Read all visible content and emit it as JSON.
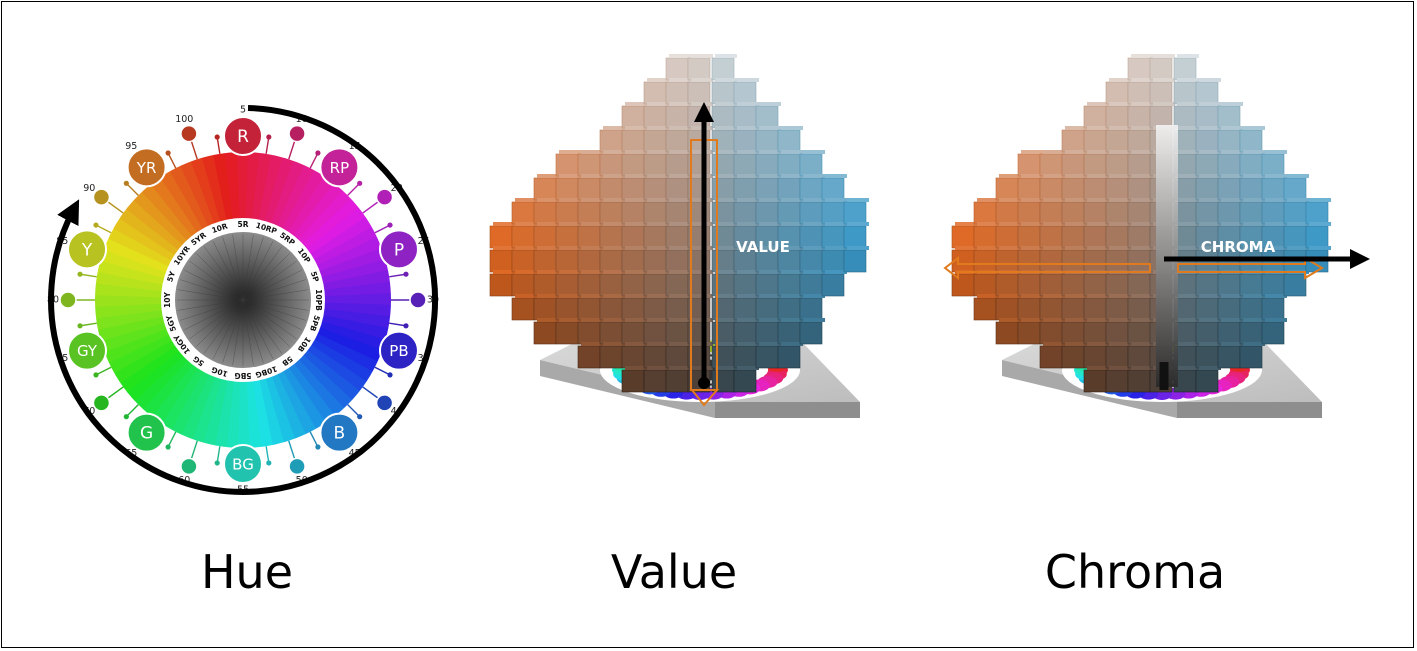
{
  "figure": {
    "captions": {
      "hue": "Hue",
      "value": "Value",
      "chroma": "Chroma"
    },
    "wheel": {
      "principal_hues": [
        "R",
        "RP",
        "P",
        "PB",
        "B",
        "BG",
        "G",
        "GY",
        "Y",
        "YR"
      ],
      "numbers": [
        "5",
        "10",
        "15",
        "20",
        "25",
        "30",
        "35",
        "40",
        "45",
        "50",
        "55",
        "60",
        "65",
        "70",
        "75",
        "80",
        "85",
        "90",
        "95",
        "100"
      ],
      "ring_labels": [
        "5R",
        "10RP",
        "5RP",
        "10P",
        "5P",
        "10PB",
        "5PB",
        "10B",
        "5B",
        "10BG",
        "5BG",
        "10G",
        "5G",
        "10GY",
        "5GY",
        "10Y",
        "5Y",
        "10YR",
        "5YR",
        "10R"
      ]
    },
    "solid_labels": {
      "value": "VALUE",
      "chroma": "CHROMA"
    },
    "colors": {
      "arrow": "#000000",
      "highlight": "#e07a1c",
      "frame": "#000000"
    }
  }
}
